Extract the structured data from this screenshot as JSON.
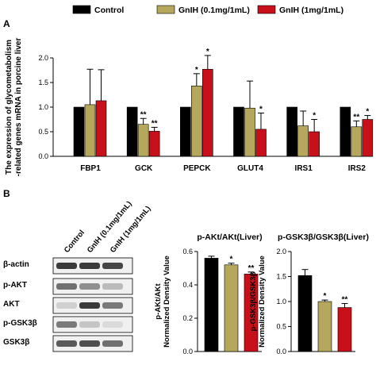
{
  "legend": [
    {
      "label": "Control",
      "color": "#000000"
    },
    {
      "label": "GnIH (0.1mg/1mL)",
      "color": "#b5a85c"
    },
    {
      "label": "GnIH (1mg/1mL)",
      "color": "#c8101a"
    }
  ],
  "colors": {
    "control": "#000000",
    "low": "#b5a85c",
    "high": "#c8101a",
    "blot_bg": "#f0f0f0",
    "band": "#1a1a1a"
  },
  "panel_a_label": "A",
  "panel_b_label": "B",
  "chart_data": [
    {
      "type": "bar",
      "panel": "A",
      "ylabel_lines": [
        "The expression of glycometabolism",
        "-related genes mRNA in porcine liver"
      ],
      "categories": [
        "FBP1",
        "GCK",
        "PEPCK",
        "GLUT4",
        "IRS1",
        "IRS2"
      ],
      "series": [
        {
          "name": "Control",
          "values": [
            1.0,
            1.0,
            1.0,
            1.0,
            1.0,
            1.0
          ],
          "errors": [
            0,
            0,
            0,
            0,
            0,
            0
          ]
        },
        {
          "name": "GnIH (0.1mg/1mL)",
          "values": [
            1.05,
            0.65,
            1.43,
            0.98,
            0.62,
            0.6
          ],
          "errors": [
            0.72,
            0.12,
            0.25,
            0.55,
            0.3,
            0.12
          ]
        },
        {
          "name": "GnIH (1mg/1mL)",
          "values": [
            1.13,
            0.51,
            1.77,
            0.55,
            0.5,
            0.75
          ],
          "errors": [
            0.63,
            0.08,
            0.28,
            0.33,
            0.25,
            0.08
          ]
        }
      ],
      "significance": [
        [
          "",
          "",
          ""
        ],
        [
          "",
          "**",
          "**"
        ],
        [
          "",
          "*",
          "*"
        ],
        [
          "",
          "",
          "*"
        ],
        [
          "",
          "",
          "*"
        ],
        [
          "",
          "**",
          "*"
        ]
      ],
      "ylim": [
        0,
        2.0
      ],
      "yticks": [
        0,
        0.5,
        1.0,
        1.5,
        2.0
      ],
      "ytick_labels": [
        "0.0",
        "0.5",
        "1.0",
        "1.5",
        "2.0"
      ]
    },
    {
      "type": "bar",
      "panel": "B-left",
      "title": "p-AKt/AKt(Liver)",
      "ylabel_lines": [
        "p-AKt/AKt",
        "Normalized Density Value"
      ],
      "categories": [
        "Control",
        "GnIH (0.1mg/1mL)",
        "GnIH (1mg/1mL)"
      ],
      "values": [
        0.56,
        0.52,
        0.465
      ],
      "errors": [
        0.012,
        0.01,
        0.012
      ],
      "significance": [
        "",
        "*",
        "**"
      ],
      "ylim": [
        0,
        0.6
      ],
      "yticks": [
        0,
        0.2,
        0.4,
        0.6
      ],
      "ytick_labels": [
        "0.0",
        "0.2",
        "0.4",
        "0.6"
      ]
    },
    {
      "type": "bar",
      "panel": "B-right",
      "title": "p-GSK3β/GSK3β(Liver)",
      "ylabel_lines": [
        "p-GSK3β/GSK3β",
        "Normalized Density Value"
      ],
      "categories": [
        "Control",
        "GnIH (0.1mg/1mL)",
        "GnIH (1mg/1mL)"
      ],
      "values": [
        1.52,
        1.0,
        0.88
      ],
      "errors": [
        0.12,
        0.03,
        0.08
      ],
      "significance": [
        "",
        "*",
        "**"
      ],
      "ylim": [
        0,
        2.0
      ],
      "yticks": [
        0,
        0.5,
        1.0,
        1.5,
        2.0
      ],
      "ytick_labels": [
        "0.0",
        "0.5",
        "1.0",
        "1.5",
        "2.0"
      ]
    }
  ],
  "western_blot": {
    "lanes": [
      "Control",
      "GnIH (0.1mg/1mL)",
      "GnIH (1mg/1mL)"
    ],
    "rows": [
      {
        "label": "β-actin",
        "intensities": [
          0.85,
          0.85,
          0.8
        ]
      },
      {
        "label": "p-AKT",
        "intensities": [
          0.6,
          0.45,
          0.25
        ]
      },
      {
        "label": "AKT",
        "intensities": [
          0.15,
          0.85,
          0.55
        ]
      },
      {
        "label": "p-GSK3β",
        "intensities": [
          0.55,
          0.2,
          0.1
        ]
      },
      {
        "label": "GSK3β",
        "intensities": [
          0.7,
          0.75,
          0.6
        ]
      }
    ]
  }
}
